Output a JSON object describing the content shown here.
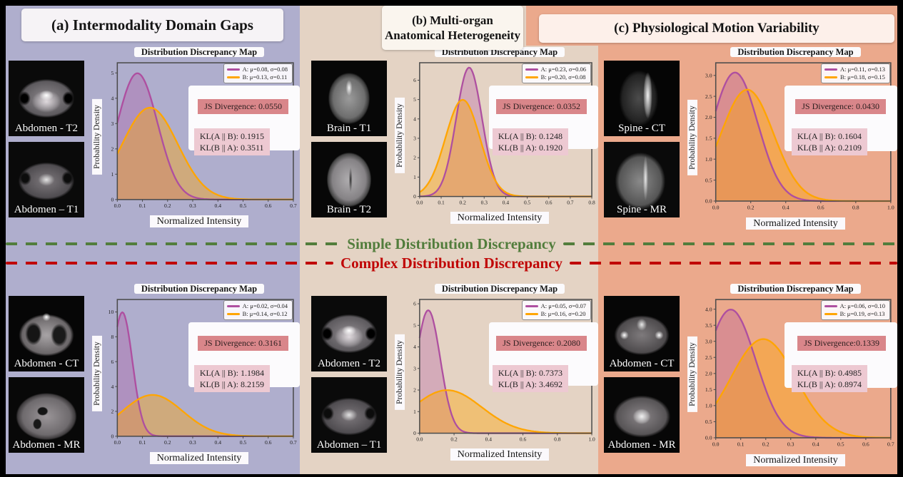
{
  "figure": {
    "background": "#000000",
    "panels": [
      {
        "key": "a",
        "title": "(a) Intermodality Domain Gaps",
        "bg": "#afaecd",
        "title_bg": "#f6f3f6"
      },
      {
        "key": "b",
        "title": "(b) Multi-organ Anatomical Heterogeneity",
        "bg": "#e4d3c4",
        "title_bg": "#faf5ee"
      },
      {
        "key": "c",
        "title": "(c) Physiological Motion Variability",
        "bg": "#eba98c",
        "title_bg": "#fdf0ea"
      }
    ],
    "dividers": [
      {
        "label": "Simple Distribution Discrepancy",
        "color": "#527d3c",
        "line_style": "dashed"
      },
      {
        "label": "Complex Distribution Discrepancy",
        "color": "#c00505",
        "line_style": "dashed"
      }
    ]
  },
  "images": {
    "a_top": [
      {
        "label": "Abdomen - T2",
        "kind": "pelvis-t2-mri"
      },
      {
        "label": "Abdomen – T1",
        "kind": "pelvis-t1-mri"
      }
    ],
    "b_top": [
      {
        "label": "Brain - T1",
        "kind": "brain-t1-mri"
      },
      {
        "label": "Brain - T2",
        "kind": "brain-t2-mri"
      }
    ],
    "c_top": [
      {
        "label": "Spine - CT",
        "kind": "spine-ct"
      },
      {
        "label": "Spine - MR",
        "kind": "spine-mr"
      }
    ],
    "a_bottom": [
      {
        "label": "Abdomen - CT",
        "kind": "thorax-ct"
      },
      {
        "label": "Abdomen - MR",
        "kind": "abdomen-mr"
      }
    ],
    "b_bottom": [
      {
        "label": "Abdomen - T2",
        "kind": "pelvis-t2-mri"
      },
      {
        "label": "Abdomen – T1",
        "kind": "pelvis-t1-mri"
      }
    ],
    "c_bottom": [
      {
        "label": "Abdomen - CT",
        "kind": "pelvis-ct"
      },
      {
        "label": "Abdomen - MR",
        "kind": "pelvis-mr"
      }
    ]
  },
  "chart_data": [
    {
      "id": "a_top",
      "type": "area",
      "title": "Distribution Discrepancy Map",
      "xlabel": "Normalized Intensity",
      "ylabel": "Probability Density",
      "xlim": [
        0.0,
        0.7
      ],
      "xtick_step": 0.1,
      "x_decimals": 1,
      "ylim": [
        0.0,
        5.4
      ],
      "ytick_step": 1,
      "y_decimals": 0,
      "series": [
        {
          "name": "A",
          "legend": "A: μ=0.08, σ=0.08",
          "distribution": "gaussian",
          "mu": 0.08,
          "sigma": 0.08,
          "color": "#ae4fa0",
          "fill_alpha": 0.3
        },
        {
          "name": "B",
          "legend": "B: μ=0.13, σ=0.11",
          "distribution": "gaussian",
          "mu": 0.13,
          "sigma": 0.11,
          "color": "#ffa502",
          "fill_alpha": 0.4
        }
      ],
      "annotations": {
        "js": "JS Divergence: 0.0550",
        "kl_ab": "KL(A || B): 0.1915",
        "kl_ba": "KL(B || A): 0.3511"
      }
    },
    {
      "id": "b_top",
      "type": "area",
      "title": "Distribution Discrepancy Map",
      "xlabel": "Normalized Intensity",
      "ylabel": "Probability Density",
      "xlim": [
        0.0,
        0.8
      ],
      "xtick_step": 0.1,
      "x_decimals": 1,
      "ylim": [
        0.0,
        6.9
      ],
      "ytick_step": 1,
      "y_decimals": 0,
      "series": [
        {
          "name": "A",
          "legend": "A: μ=0.23, σ=0.06",
          "distribution": "gaussian",
          "mu": 0.23,
          "sigma": 0.06,
          "color": "#ae4fa0",
          "fill_alpha": 0.3
        },
        {
          "name": "B",
          "legend": "B: μ=0.20, σ=0.08",
          "distribution": "gaussian",
          "mu": 0.2,
          "sigma": 0.08,
          "color": "#ffa502",
          "fill_alpha": 0.4
        }
      ],
      "annotations": {
        "js": "JS Divergence: 0.0352",
        "kl_ab": "KL(A || B): 0.1248",
        "kl_ba": "KL(B || A): 0.1920"
      }
    },
    {
      "id": "c_top",
      "type": "area",
      "title": "Distribution Discrepancy Map",
      "xlabel": "Normalized Intensity",
      "ylabel": "Probability Density",
      "xlim": [
        0.0,
        1.0
      ],
      "xtick_step": 0.2,
      "x_decimals": 1,
      "ylim": [
        0.0,
        3.3
      ],
      "ytick_step": 0.5,
      "y_decimals": 1,
      "series": [
        {
          "name": "A",
          "legend": "A: μ=0.11, σ=0.13",
          "distribution": "gaussian",
          "mu": 0.11,
          "sigma": 0.13,
          "color": "#ae4fa0",
          "fill_alpha": 0.3
        },
        {
          "name": "B",
          "legend": "B: μ=0.18, σ=0.15",
          "distribution": "gaussian",
          "mu": 0.18,
          "sigma": 0.15,
          "color": "#ffa502",
          "fill_alpha": 0.4
        }
      ],
      "annotations": {
        "js": "JS Divergence: 0.0430",
        "kl_ab": "KL(A || B): 0.1604",
        "kl_ba": "KL(B || A): 0.2109"
      }
    },
    {
      "id": "a_bottom",
      "type": "area",
      "title": "Distribution Discrepancy Map",
      "xlabel": "Normalized Intensity",
      "ylabel": "Probability Density",
      "xlim": [
        0.0,
        0.7
      ],
      "xtick_step": 0.1,
      "x_decimals": 1,
      "ylim": [
        0.0,
        11.0
      ],
      "ytick_step": 2,
      "y_decimals": 0,
      "series": [
        {
          "name": "A",
          "legend": "A: μ=0.02, σ=0.04",
          "distribution": "gaussian",
          "mu": 0.02,
          "sigma": 0.04,
          "color": "#ae4fa0",
          "fill_alpha": 0.3
        },
        {
          "name": "B",
          "legend": "B: μ=0.14, σ=0.12",
          "distribution": "gaussian",
          "mu": 0.14,
          "sigma": 0.12,
          "color": "#ffa502",
          "fill_alpha": 0.4
        }
      ],
      "annotations": {
        "js": "JS Divergence: 0.3161",
        "kl_ab": "KL(A || B): 1.1984",
        "kl_ba": "KL(B || A): 8.2159"
      }
    },
    {
      "id": "b_bottom",
      "type": "area",
      "title": "Distribution Discrepancy Map",
      "xlabel": "Normalized Intensity",
      "ylabel": "Probability Density",
      "xlim": [
        0.0,
        1.0
      ],
      "xtick_step": 0.2,
      "x_decimals": 1,
      "ylim": [
        0.0,
        6.2
      ],
      "ytick_step": 1,
      "y_decimals": 0,
      "series": [
        {
          "name": "A",
          "legend": "A: μ=0.05, σ=0.07",
          "distribution": "gaussian",
          "mu": 0.05,
          "sigma": 0.07,
          "color": "#ae4fa0",
          "fill_alpha": 0.3
        },
        {
          "name": "B",
          "legend": "B: μ=0.16, σ=0.20",
          "distribution": "gaussian",
          "mu": 0.16,
          "sigma": 0.2,
          "color": "#ffa502",
          "fill_alpha": 0.4
        }
      ],
      "annotations": {
        "js": "JS Divergence: 0.2080",
        "kl_ab": "KL(A || B): 0.7373",
        "kl_ba": "KL(B || A): 3.4692"
      }
    },
    {
      "id": "c_bottom",
      "type": "area",
      "title": "Distribution Discrepancy Map",
      "xlabel": "Normalized Intensity",
      "ylabel": "Probability Density",
      "xlim": [
        0.0,
        0.7
      ],
      "xtick_step": 0.1,
      "x_decimals": 1,
      "ylim": [
        0.0,
        4.3
      ],
      "ytick_step": 0.5,
      "y_decimals": 1,
      "series": [
        {
          "name": "A",
          "legend": "A: μ=0.06, σ=0.10",
          "distribution": "gaussian",
          "mu": 0.06,
          "sigma": 0.1,
          "color": "#ae4fa0",
          "fill_alpha": 0.3
        },
        {
          "name": "B",
          "legend": "B: μ=0.19, σ=0.13",
          "distribution": "gaussian",
          "mu": 0.19,
          "sigma": 0.13,
          "color": "#ffa502",
          "fill_alpha": 0.4
        }
      ],
      "annotations": {
        "js": "JS Divergence:0.1339",
        "kl_ab": "KL(A || B): 0.4985",
        "kl_ba": "KL(B || A): 0.8974"
      }
    }
  ]
}
